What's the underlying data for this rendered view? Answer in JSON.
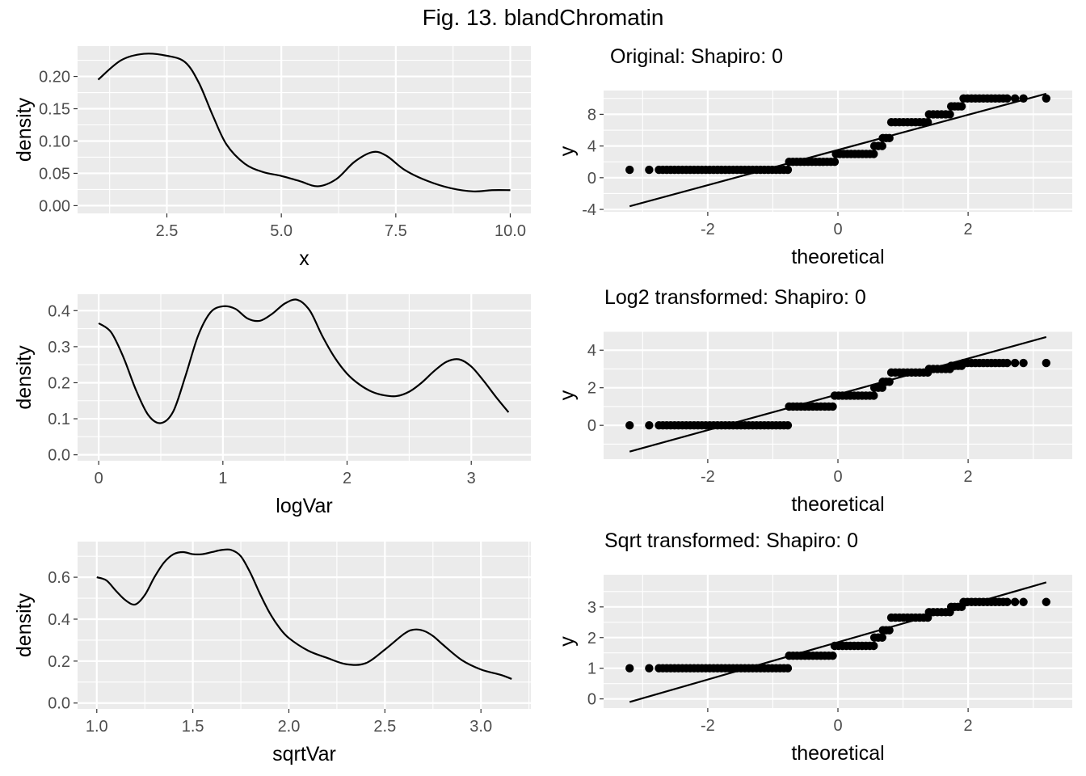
{
  "figure_title": "Fig. 13. blandChromatin",
  "chart_data": [
    {
      "id": "density-original",
      "type": "line",
      "title": "",
      "xlabel": "x",
      "ylabel": "density",
      "xlim": [
        0.55,
        10.45
      ],
      "ylim": [
        -0.012,
        0.247
      ],
      "xticks": [
        2.5,
        5.0,
        7.5,
        10.0
      ],
      "xtick_labels": [
        "2.5",
        "5.0",
        "7.5",
        "10.0"
      ],
      "yticks": [
        0.0,
        0.05,
        0.1,
        0.15,
        0.2
      ],
      "ytick_labels": [
        "0.00",
        "0.05",
        "0.10",
        "0.15",
        "0.20"
      ],
      "grid": true,
      "x": [
        1.0,
        1.5,
        2.0,
        2.5,
        2.9,
        3.2,
        3.5,
        3.8,
        4.2,
        4.6,
        5.0,
        5.4,
        5.8,
        6.2,
        6.6,
        7.0,
        7.3,
        7.7,
        8.2,
        8.7,
        9.2,
        9.6,
        10.0
      ],
      "y": [
        0.195,
        0.225,
        0.235,
        0.232,
        0.222,
        0.19,
        0.14,
        0.095,
        0.065,
        0.052,
        0.046,
        0.038,
        0.03,
        0.041,
        0.068,
        0.083,
        0.077,
        0.055,
        0.038,
        0.027,
        0.022,
        0.024,
        0.024
      ]
    },
    {
      "id": "qq-original",
      "type": "scatter",
      "title": "Original: Shapiro: 0",
      "xlabel": "theoretical",
      "ylabel": "y",
      "xlim": [
        -3.6,
        3.6
      ],
      "ylim": [
        -4.3,
        11.0
      ],
      "xticks": [
        -2,
        0,
        2
      ],
      "xtick_labels": [
        "-2",
        "0",
        "2"
      ],
      "yticks": [
        -4,
        0,
        4,
        8
      ],
      "ytick_labels": [
        "-4",
        "0",
        "4",
        "8"
      ],
      "grid": true,
      "line": {
        "x": [
          -3.2,
          3.2
        ],
        "y": [
          -3.6,
          10.6
        ]
      },
      "steps": [
        {
          "y": 1,
          "x_start": -2.75,
          "x_end": -0.77
        },
        {
          "y": 2,
          "x_start": -0.75,
          "x_end": -0.05
        },
        {
          "y": 3,
          "x_start": -0.03,
          "x_end": 0.55
        },
        {
          "y": 4,
          "x_start": 0.56,
          "x_end": 0.68
        },
        {
          "y": 5,
          "x_start": 0.69,
          "x_end": 0.79
        },
        {
          "y": 7,
          "x_start": 0.82,
          "x_end": 1.38
        },
        {
          "y": 8,
          "x_start": 1.4,
          "x_end": 1.72
        },
        {
          "y": 9,
          "x_start": 1.74,
          "x_end": 1.9
        },
        {
          "y": 10,
          "x_start": 1.93,
          "x_end": 2.6
        }
      ],
      "points": [
        {
          "x": -3.2,
          "y": 1
        },
        {
          "x": -2.9,
          "y": 1
        },
        {
          "x": 2.72,
          "y": 10
        },
        {
          "x": 2.85,
          "y": 10
        },
        {
          "x": 3.2,
          "y": 10
        }
      ]
    },
    {
      "id": "density-log",
      "type": "line",
      "title": "",
      "xlabel": "logVar",
      "ylabel": "density",
      "xlim": [
        -0.17,
        3.48
      ],
      "ylim": [
        -0.0165,
        0.4455
      ],
      "xticks": [
        0,
        1,
        2,
        3
      ],
      "xtick_labels": [
        "0",
        "1",
        "2",
        "3"
      ],
      "yticks": [
        0.0,
        0.1,
        0.2,
        0.3,
        0.4
      ],
      "ytick_labels": [
        "0.0",
        "0.1",
        "0.2",
        "0.3",
        "0.4"
      ],
      "grid": true,
      "x": [
        0.0,
        0.1,
        0.2,
        0.3,
        0.4,
        0.5,
        0.6,
        0.7,
        0.8,
        0.9,
        1.0,
        1.1,
        1.2,
        1.3,
        1.4,
        1.5,
        1.6,
        1.7,
        1.8,
        1.9,
        2.0,
        2.1,
        2.2,
        2.3,
        2.4,
        2.5,
        2.6,
        2.7,
        2.8,
        2.9,
        3.0,
        3.1,
        3.2,
        3.3
      ],
      "y": [
        0.365,
        0.34,
        0.27,
        0.18,
        0.11,
        0.088,
        0.12,
        0.22,
        0.33,
        0.395,
        0.412,
        0.405,
        0.378,
        0.372,
        0.392,
        0.42,
        0.43,
        0.4,
        0.33,
        0.27,
        0.225,
        0.195,
        0.175,
        0.165,
        0.163,
        0.175,
        0.2,
        0.232,
        0.258,
        0.265,
        0.245,
        0.205,
        0.16,
        0.118
      ]
    },
    {
      "id": "qq-log",
      "type": "scatter",
      "title": "Log2 transformed: Shapiro: 0",
      "xlabel": "theoretical",
      "ylabel": "y",
      "xlim": [
        -3.6,
        3.6
      ],
      "ylim": [
        -1.8,
        5.0
      ],
      "xticks": [
        -2,
        0,
        2
      ],
      "xtick_labels": [
        "-2",
        "0",
        "2"
      ],
      "yticks": [
        0,
        2,
        4
      ],
      "ytick_labels": [
        "0",
        "2",
        "4"
      ],
      "grid": true,
      "line": {
        "x": [
          -3.2,
          3.2
        ],
        "y": [
          -1.4,
          4.7
        ]
      },
      "steps": [
        {
          "y": 0,
          "x_start": -2.75,
          "x_end": -0.77
        },
        {
          "y": 1,
          "x_start": -0.75,
          "x_end": -0.08
        },
        {
          "y": 1.58,
          "x_start": -0.05,
          "x_end": 0.55
        },
        {
          "y": 2.0,
          "x_start": 0.56,
          "x_end": 0.68
        },
        {
          "y": 2.32,
          "x_start": 0.69,
          "x_end": 0.79
        },
        {
          "y": 2.81,
          "x_start": 0.82,
          "x_end": 1.38
        },
        {
          "y": 3.0,
          "x_start": 1.4,
          "x_end": 1.72
        },
        {
          "y": 3.17,
          "x_start": 1.74,
          "x_end": 1.9
        },
        {
          "y": 3.32,
          "x_start": 1.93,
          "x_end": 2.6
        }
      ],
      "points": [
        {
          "x": -3.2,
          "y": 0
        },
        {
          "x": -2.9,
          "y": 0
        },
        {
          "x": 2.72,
          "y": 3.32
        },
        {
          "x": 2.85,
          "y": 3.32
        },
        {
          "x": 3.2,
          "y": 3.32
        }
      ]
    },
    {
      "id": "density-sqrt",
      "type": "line",
      "title": "",
      "xlabel": "sqrtVar",
      "ylabel": "density",
      "xlim": [
        0.9,
        3.26
      ],
      "ylim": [
        -0.028,
        0.77
      ],
      "xticks": [
        1.0,
        1.5,
        2.0,
        2.5,
        3.0
      ],
      "xtick_labels": [
        "1.0",
        "1.5",
        "2.0",
        "2.5",
        "3.0"
      ],
      "yticks": [
        0.0,
        0.2,
        0.4,
        0.6
      ],
      "ytick_labels": [
        "0.0",
        "0.2",
        "0.4",
        "0.6"
      ],
      "grid": true,
      "x": [
        1.0,
        1.05,
        1.1,
        1.15,
        1.2,
        1.25,
        1.3,
        1.35,
        1.4,
        1.45,
        1.5,
        1.55,
        1.6,
        1.65,
        1.7,
        1.75,
        1.8,
        1.85,
        1.9,
        1.95,
        2.0,
        2.1,
        2.2,
        2.3,
        2.4,
        2.5,
        2.6,
        2.65,
        2.7,
        2.75,
        2.8,
        2.9,
        3.0,
        3.1,
        3.16
      ],
      "y": [
        0.6,
        0.585,
        0.535,
        0.49,
        0.47,
        0.515,
        0.6,
        0.67,
        0.71,
        0.72,
        0.71,
        0.71,
        0.72,
        0.73,
        0.73,
        0.7,
        0.62,
        0.52,
        0.43,
        0.36,
        0.31,
        0.25,
        0.215,
        0.185,
        0.19,
        0.255,
        0.33,
        0.35,
        0.345,
        0.32,
        0.28,
        0.205,
        0.16,
        0.135,
        0.115
      ]
    },
    {
      "id": "qq-sqrt",
      "type": "scatter",
      "title": "Sqrt transformed: Shapiro: 0",
      "xlabel": "theoretical",
      "ylabel": "y",
      "xlim": [
        -3.6,
        3.6
      ],
      "ylim": [
        -0.3,
        4.05
      ],
      "xticks": [
        -2,
        0,
        2
      ],
      "xtick_labels": [
        "-2",
        "0",
        "2"
      ],
      "yticks": [
        0,
        1,
        2,
        3
      ],
      "ytick_labels": [
        "0",
        "1",
        "2",
        "3"
      ],
      "grid": true,
      "line": {
        "x": [
          -3.2,
          3.2
        ],
        "y": [
          -0.1,
          3.8
        ]
      },
      "steps": [
        {
          "y": 1,
          "x_start": -2.75,
          "x_end": -0.77
        },
        {
          "y": 1.41,
          "x_start": -0.75,
          "x_end": -0.08
        },
        {
          "y": 1.73,
          "x_start": -0.05,
          "x_end": 0.55
        },
        {
          "y": 2.0,
          "x_start": 0.56,
          "x_end": 0.68
        },
        {
          "y": 2.24,
          "x_start": 0.69,
          "x_end": 0.79
        },
        {
          "y": 2.65,
          "x_start": 0.82,
          "x_end": 1.38
        },
        {
          "y": 2.83,
          "x_start": 1.4,
          "x_end": 1.72
        },
        {
          "y": 3.0,
          "x_start": 1.74,
          "x_end": 1.9
        },
        {
          "y": 3.16,
          "x_start": 1.93,
          "x_end": 2.6
        }
      ],
      "points": [
        {
          "x": -3.2,
          "y": 1
        },
        {
          "x": -2.9,
          "y": 1
        },
        {
          "x": 2.72,
          "y": 3.16
        },
        {
          "x": 2.85,
          "y": 3.16
        },
        {
          "x": 3.2,
          "y": 3.16
        }
      ]
    }
  ]
}
